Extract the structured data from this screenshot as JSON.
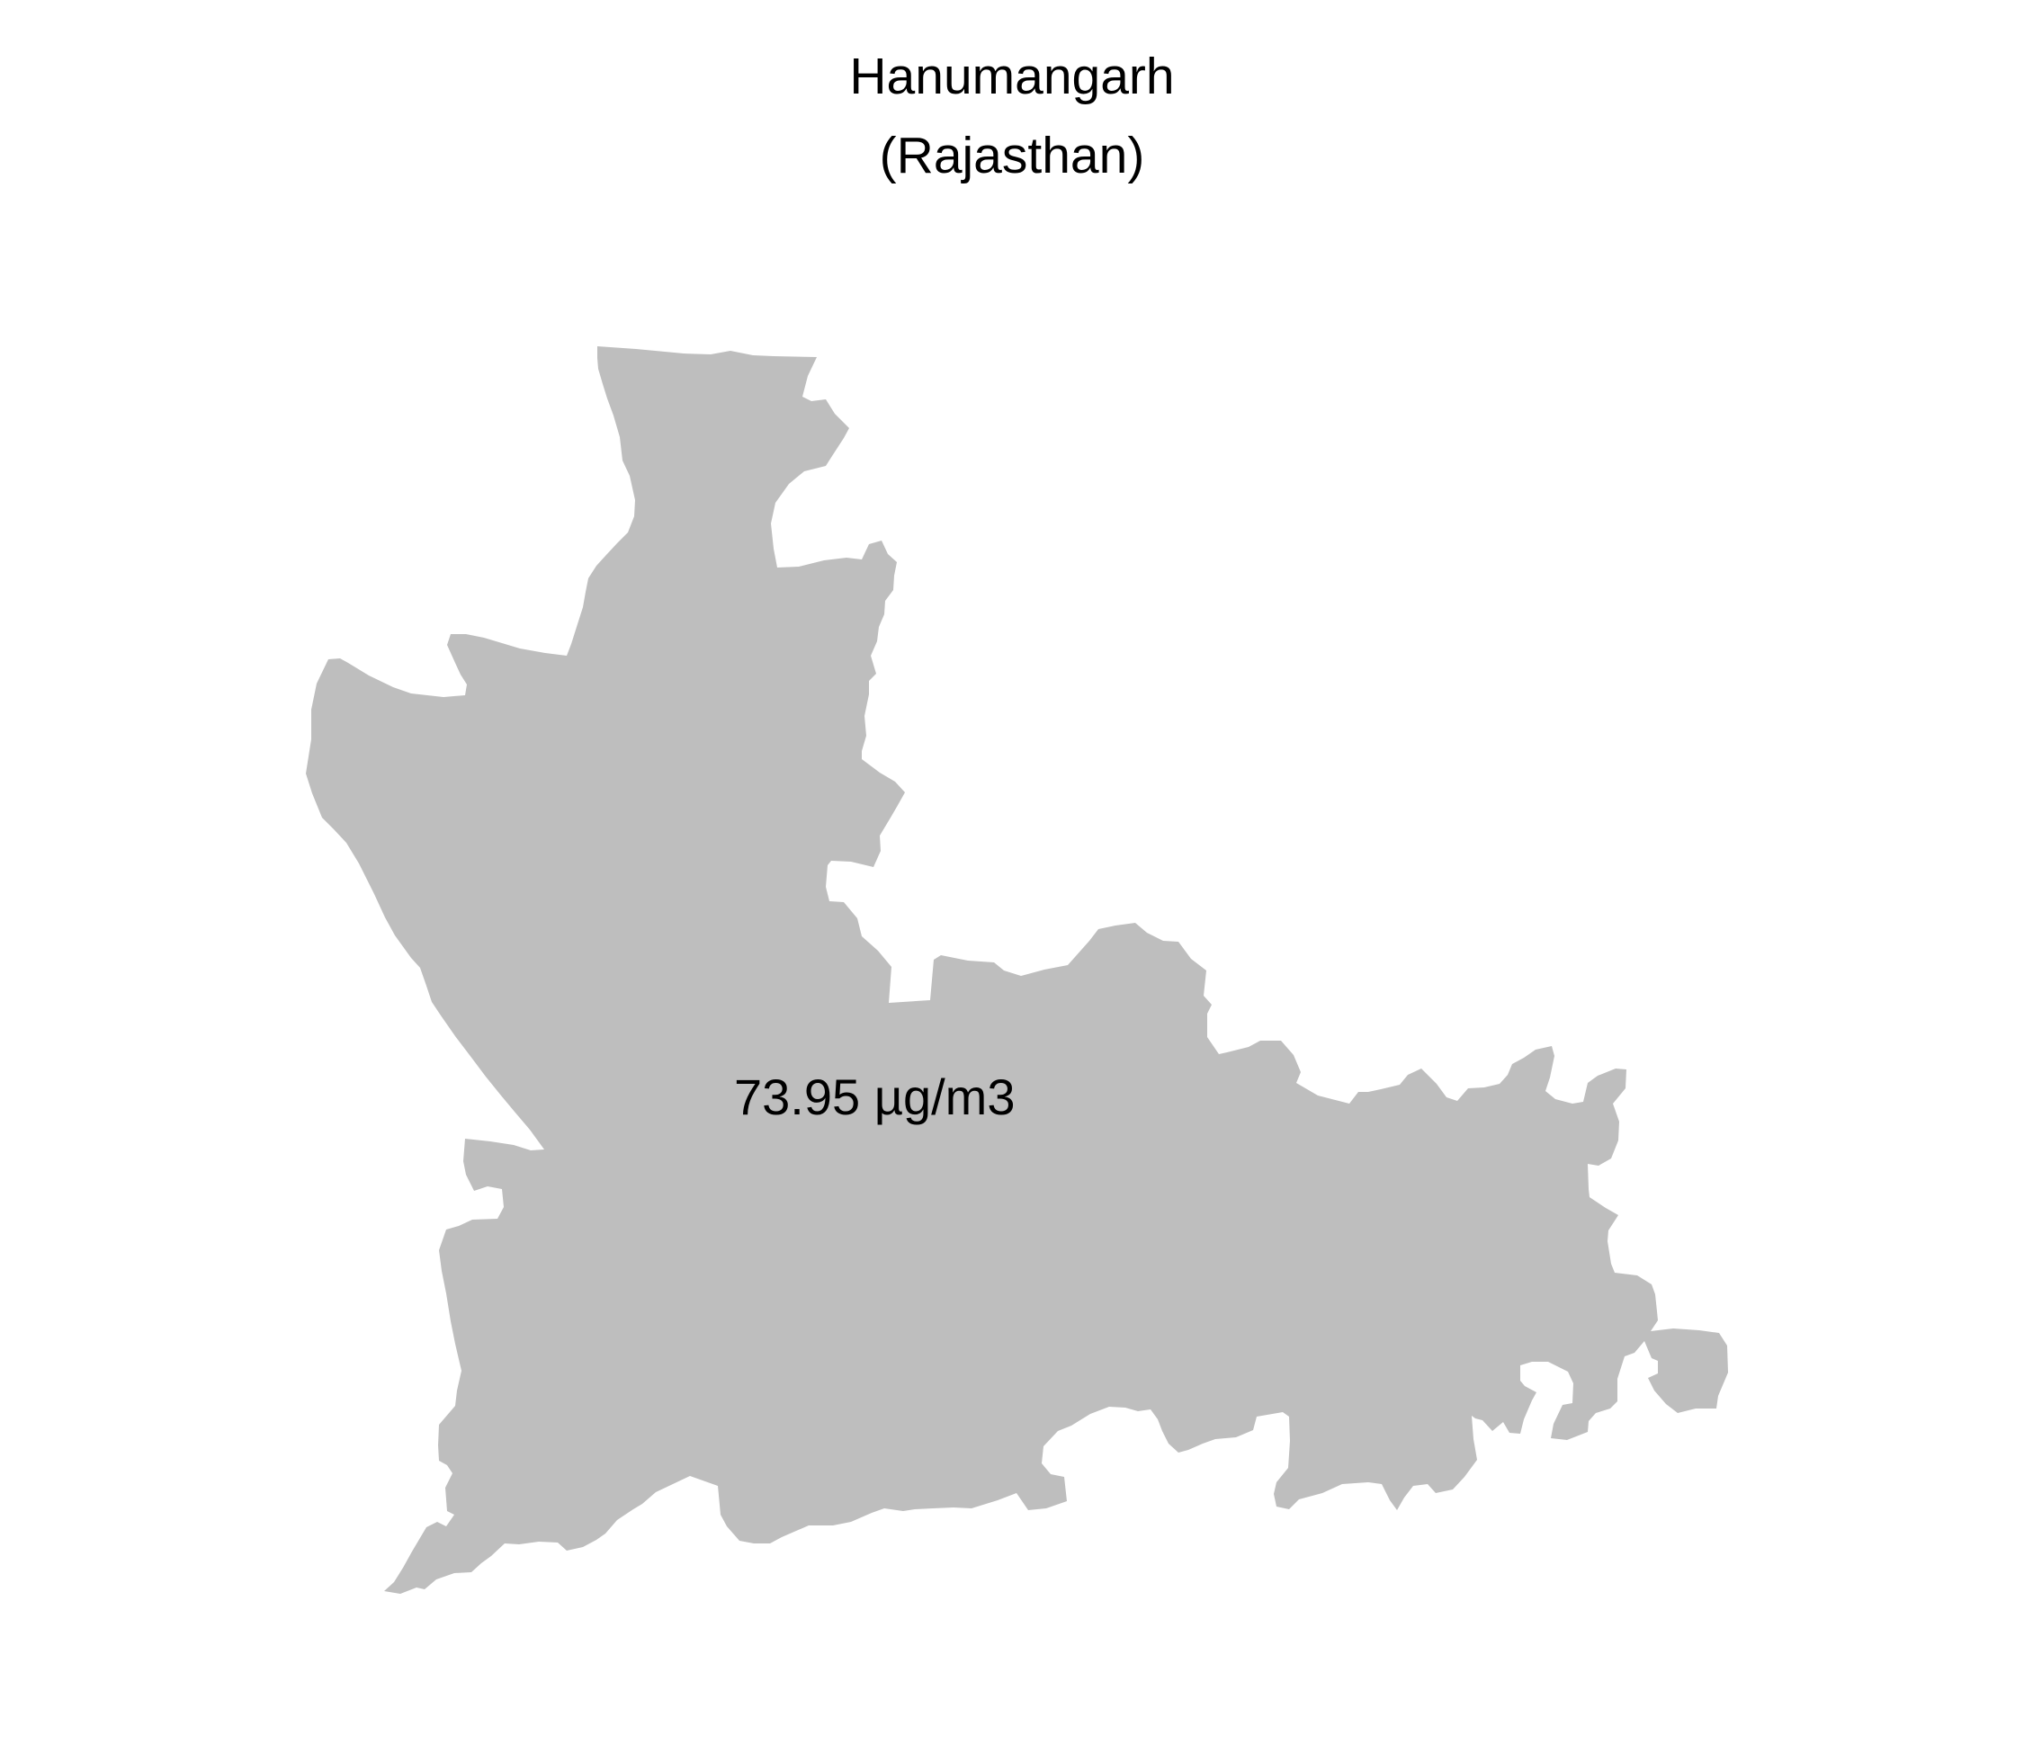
{
  "map": {
    "title": "Hanumangarh",
    "subtitle": "(Rajasthan)",
    "region_name": "Hanumangarh",
    "region_fill_color": "#bebebe",
    "background_color": "#ffffff",
    "value_label": "73.95 µg/m3"
  }
}
